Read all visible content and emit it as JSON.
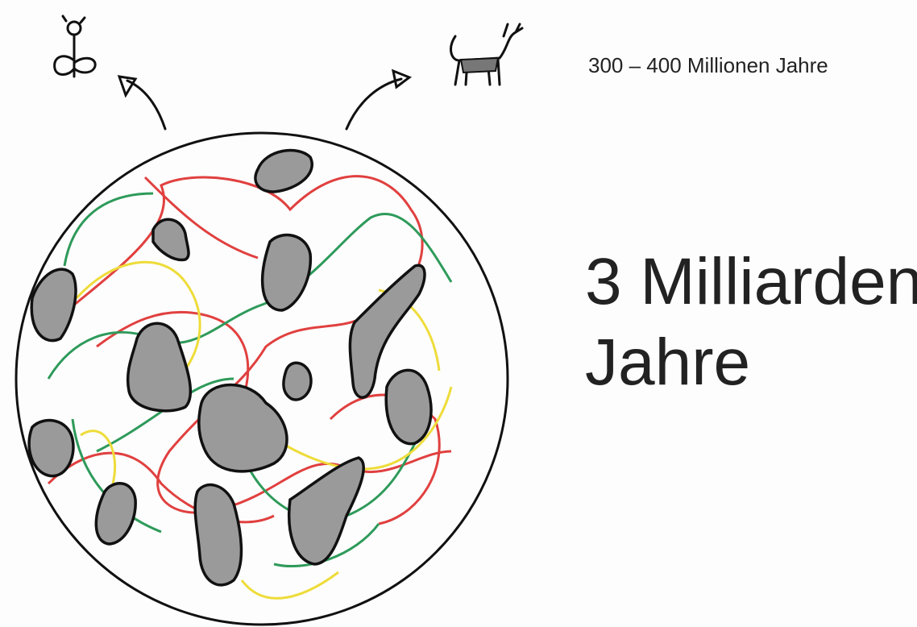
{
  "small_label": "300 – 400 Millionen Jahre",
  "large_label": [
    "3 Milliarden",
    "Jahre"
  ]
}
